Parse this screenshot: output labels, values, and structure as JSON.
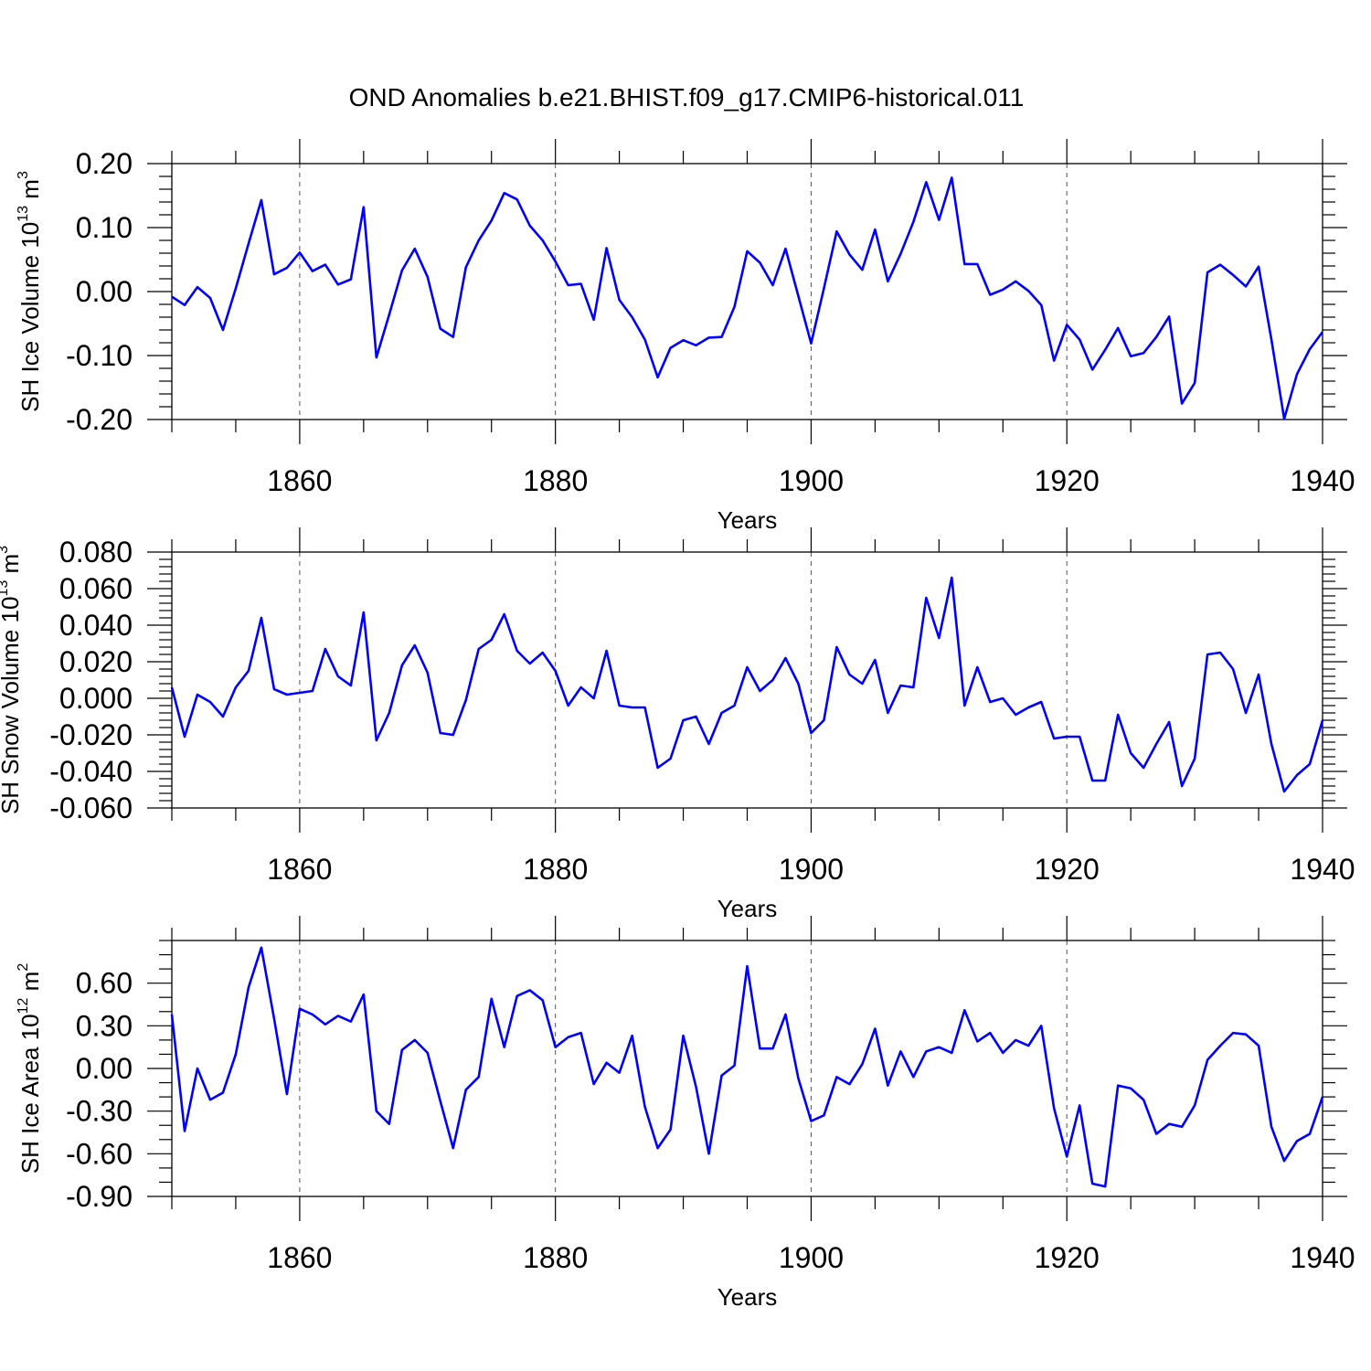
{
  "figure": {
    "title": "OND Anomalies b.e21.BHIST.f09_g17.CMIP6-historical.011",
    "line_color": "#0000ff"
  },
  "chart_data": [
    {
      "type": "line",
      "id": "ice-volume",
      "ylabel": "SH Ice Volume 10",
      "ylabel_sup": "13",
      "ylabel_unit": " m",
      "ylabel_unit_sup": "3",
      "xlabel": "Years",
      "xlim": [
        1850,
        1940
      ],
      "ylim": [
        -0.2,
        0.2
      ],
      "xticks": [
        1860,
        1880,
        1900,
        1920,
        1940
      ],
      "xtick_labels": [
        "1860",
        "1880",
        "1900",
        "1920",
        "1940"
      ],
      "yticks": [
        -0.2,
        -0.1,
        0.0,
        0.1,
        0.2
      ],
      "ytick_labels": [
        "-0.20",
        "-0.10",
        "0.00",
        "0.10",
        "0.20"
      ],
      "ytick_minor_step": 0.02,
      "grid": "vertical dashed at major x ticks",
      "x_start": 1850,
      "x_step": 1,
      "values": [
        -0.008,
        -0.021,
        0.007,
        -0.01,
        -0.06,
        0.005,
        0.075,
        0.143,
        0.027,
        0.037,
        0.061,
        0.032,
        0.042,
        0.011,
        0.019,
        0.132,
        -0.103,
        -0.036,
        0.033,
        0.067,
        0.023,
        -0.058,
        -0.071,
        0.038,
        0.08,
        0.111,
        0.154,
        0.144,
        0.103,
        0.08,
        0.047,
        0.01,
        0.012,
        -0.044,
        0.068,
        -0.013,
        -0.04,
        -0.075,
        -0.134,
        -0.088,
        -0.076,
        -0.084,
        -0.072,
        -0.071,
        -0.024,
        0.063,
        0.045,
        0.01,
        0.067,
        -0.007,
        -0.081,
        0.005,
        0.094,
        0.058,
        0.034,
        0.097,
        0.016,
        0.059,
        0.109,
        0.171,
        0.112,
        0.178,
        0.043,
        0.043,
        -0.005,
        0.003,
        0.016,
        0.001,
        -0.021,
        -0.108,
        -0.052,
        -0.075,
        -0.122,
        -0.091,
        -0.057,
        -0.101,
        -0.096,
        -0.071,
        -0.039,
        -0.175,
        -0.143,
        0.03,
        0.042,
        0.026,
        0.008,
        0.039,
        -0.075,
        -0.199,
        -0.129,
        -0.09,
        -0.063
      ]
    },
    {
      "type": "line",
      "id": "snow-volume",
      "ylabel": "SH Snow Volume 10",
      "ylabel_sup": "13",
      "ylabel_unit": " m",
      "ylabel_unit_sup": "3",
      "xlabel": "Years",
      "xlim": [
        1850,
        1940
      ],
      "ylim": [
        -0.06,
        0.08
      ],
      "xticks": [
        1860,
        1880,
        1900,
        1920,
        1940
      ],
      "xtick_labels": [
        "1860",
        "1880",
        "1900",
        "1920",
        "1940"
      ],
      "yticks": [
        -0.06,
        -0.04,
        -0.02,
        0.0,
        0.02,
        0.04,
        0.06,
        0.08
      ],
      "ytick_labels": [
        "-0.060",
        "-0.040",
        "-0.020",
        "0.000",
        "0.020",
        "0.040",
        "0.060",
        "0.080"
      ],
      "ytick_minor_step": 0.004,
      "grid": "vertical dashed at major x ticks",
      "x_start": 1850,
      "x_step": 1,
      "values": [
        0.006,
        -0.021,
        0.002,
        -0.002,
        -0.01,
        0.006,
        0.015,
        0.044,
        0.005,
        0.002,
        0.003,
        0.004,
        0.027,
        0.012,
        0.007,
        0.047,
        -0.023,
        -0.008,
        0.018,
        0.029,
        0.014,
        -0.019,
        -0.02,
        -0.001,
        0.027,
        0.032,
        0.046,
        0.026,
        0.019,
        0.025,
        0.015,
        -0.004,
        0.006,
        0.0,
        0.026,
        -0.004,
        -0.005,
        -0.005,
        -0.038,
        -0.033,
        -0.012,
        -0.01,
        -0.025,
        -0.008,
        -0.004,
        0.017,
        0.004,
        0.01,
        0.022,
        0.008,
        -0.019,
        -0.012,
        0.028,
        0.013,
        0.008,
        0.021,
        -0.008,
        0.007,
        0.006,
        0.055,
        0.033,
        0.066,
        -0.004,
        0.017,
        -0.002,
        0.0,
        -0.009,
        -0.005,
        -0.002,
        -0.022,
        -0.021,
        -0.021,
        -0.045,
        -0.045,
        -0.009,
        -0.03,
        -0.038,
        -0.025,
        -0.013,
        -0.048,
        -0.033,
        0.024,
        0.025,
        0.016,
        -0.008,
        0.013,
        -0.025,
        -0.051,
        -0.042,
        -0.036,
        -0.012
      ]
    },
    {
      "type": "line",
      "id": "ice-area",
      "ylabel": "SH Ice Area 10",
      "ylabel_sup": "12",
      "ylabel_unit": " m",
      "ylabel_unit_sup": "2",
      "xlabel": "Years",
      "xlim": [
        1850,
        1940
      ],
      "ylim": [
        -0.9,
        0.9
      ],
      "xticks": [
        1860,
        1880,
        1900,
        1920,
        1940
      ],
      "xtick_labels": [
        "1860",
        "1880",
        "1900",
        "1920",
        "1940"
      ],
      "yticks": [
        -0.9,
        -0.6,
        -0.3,
        0.0,
        0.3,
        0.6
      ],
      "ytick_labels": [
        "-0.90",
        "-0.60",
        "-0.30",
        "0.00",
        "0.30",
        "0.60"
      ],
      "ytick_minor_step": 0.1,
      "grid": "vertical dashed at major x ticks",
      "x_start": 1850,
      "x_step": 1,
      "values": [
        0.38,
        -0.44,
        0.0,
        -0.22,
        -0.17,
        0.1,
        0.57,
        0.85,
        0.35,
        -0.18,
        0.42,
        0.38,
        0.31,
        0.37,
        0.33,
        0.52,
        -0.3,
        -0.39,
        0.13,
        0.2,
        0.11,
        -0.23,
        -0.56,
        -0.15,
        -0.06,
        0.49,
        0.15,
        0.51,
        0.55,
        0.48,
        0.15,
        0.22,
        0.25,
        -0.11,
        0.04,
        -0.03,
        0.23,
        -0.27,
        -0.56,
        -0.43,
        0.23,
        -0.13,
        -0.6,
        -0.05,
        0.02,
        0.72,
        0.14,
        0.14,
        0.38,
        -0.07,
        -0.37,
        -0.33,
        -0.06,
        -0.11,
        0.03,
        0.28,
        -0.12,
        0.12,
        -0.06,
        0.12,
        0.15,
        0.11,
        0.41,
        0.19,
        0.25,
        0.11,
        0.2,
        0.16,
        0.3,
        -0.28,
        -0.62,
        -0.26,
        -0.81,
        -0.83,
        -0.12,
        -0.14,
        -0.22,
        -0.46,
        -0.39,
        -0.41,
        -0.26,
        0.06,
        0.16,
        0.25,
        0.24,
        0.16,
        -0.41,
        -0.65,
        -0.51,
        -0.46,
        -0.2
      ]
    }
  ]
}
